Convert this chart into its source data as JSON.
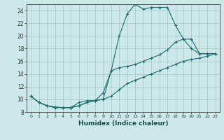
{
  "xlabel": "Humidex (Indice chaleur)",
  "bg_color": "#cce8e8",
  "grid_color": "#aacccc",
  "line_color": "#1a6b6b",
  "xlim": [
    -0.5,
    23.5
  ],
  "ylim": [
    8,
    25
  ],
  "xticks": [
    0,
    1,
    2,
    3,
    4,
    5,
    6,
    7,
    8,
    9,
    10,
    11,
    12,
    13,
    14,
    15,
    16,
    17,
    18,
    19,
    20,
    21,
    22,
    23
  ],
  "yticks": [
    8,
    10,
    12,
    14,
    16,
    18,
    20,
    22,
    24
  ],
  "line1_x": [
    0,
    1,
    2,
    3,
    4,
    5,
    6,
    7,
    8,
    9,
    10,
    11,
    12,
    13,
    14,
    15,
    16,
    17,
    18,
    19,
    20,
    21,
    22,
    23
  ],
  "line1_y": [
    10.5,
    9.5,
    9.0,
    8.8,
    8.7,
    8.7,
    9.5,
    9.8,
    9.8,
    10.0,
    14.5,
    20.0,
    23.5,
    25.0,
    24.2,
    24.5,
    24.5,
    24.5,
    21.7,
    19.5,
    18.0,
    17.2,
    17.2,
    17.2
  ],
  "line2_x": [
    0,
    1,
    2,
    3,
    4,
    5,
    6,
    7,
    8,
    9,
    10,
    11,
    12,
    13,
    14,
    15,
    16,
    17,
    18,
    19,
    20,
    21,
    22,
    23
  ],
  "line2_y": [
    10.5,
    9.5,
    9.0,
    8.7,
    8.7,
    8.7,
    9.0,
    9.5,
    9.8,
    11.0,
    14.5,
    15.0,
    15.2,
    15.5,
    16.0,
    16.5,
    17.0,
    17.8,
    19.0,
    19.5,
    19.5,
    17.2,
    17.2,
    17.2
  ],
  "line3_x": [
    0,
    1,
    2,
    3,
    4,
    5,
    6,
    7,
    8,
    9,
    10,
    11,
    12,
    13,
    14,
    15,
    16,
    17,
    18,
    19,
    20,
    21,
    22,
    23
  ],
  "line3_y": [
    10.5,
    9.5,
    9.0,
    8.7,
    8.7,
    8.7,
    9.0,
    9.5,
    9.8,
    10.0,
    10.5,
    11.5,
    12.5,
    13.0,
    13.5,
    14.0,
    14.5,
    15.0,
    15.5,
    16.0,
    16.3,
    16.5,
    16.8,
    17.2
  ]
}
